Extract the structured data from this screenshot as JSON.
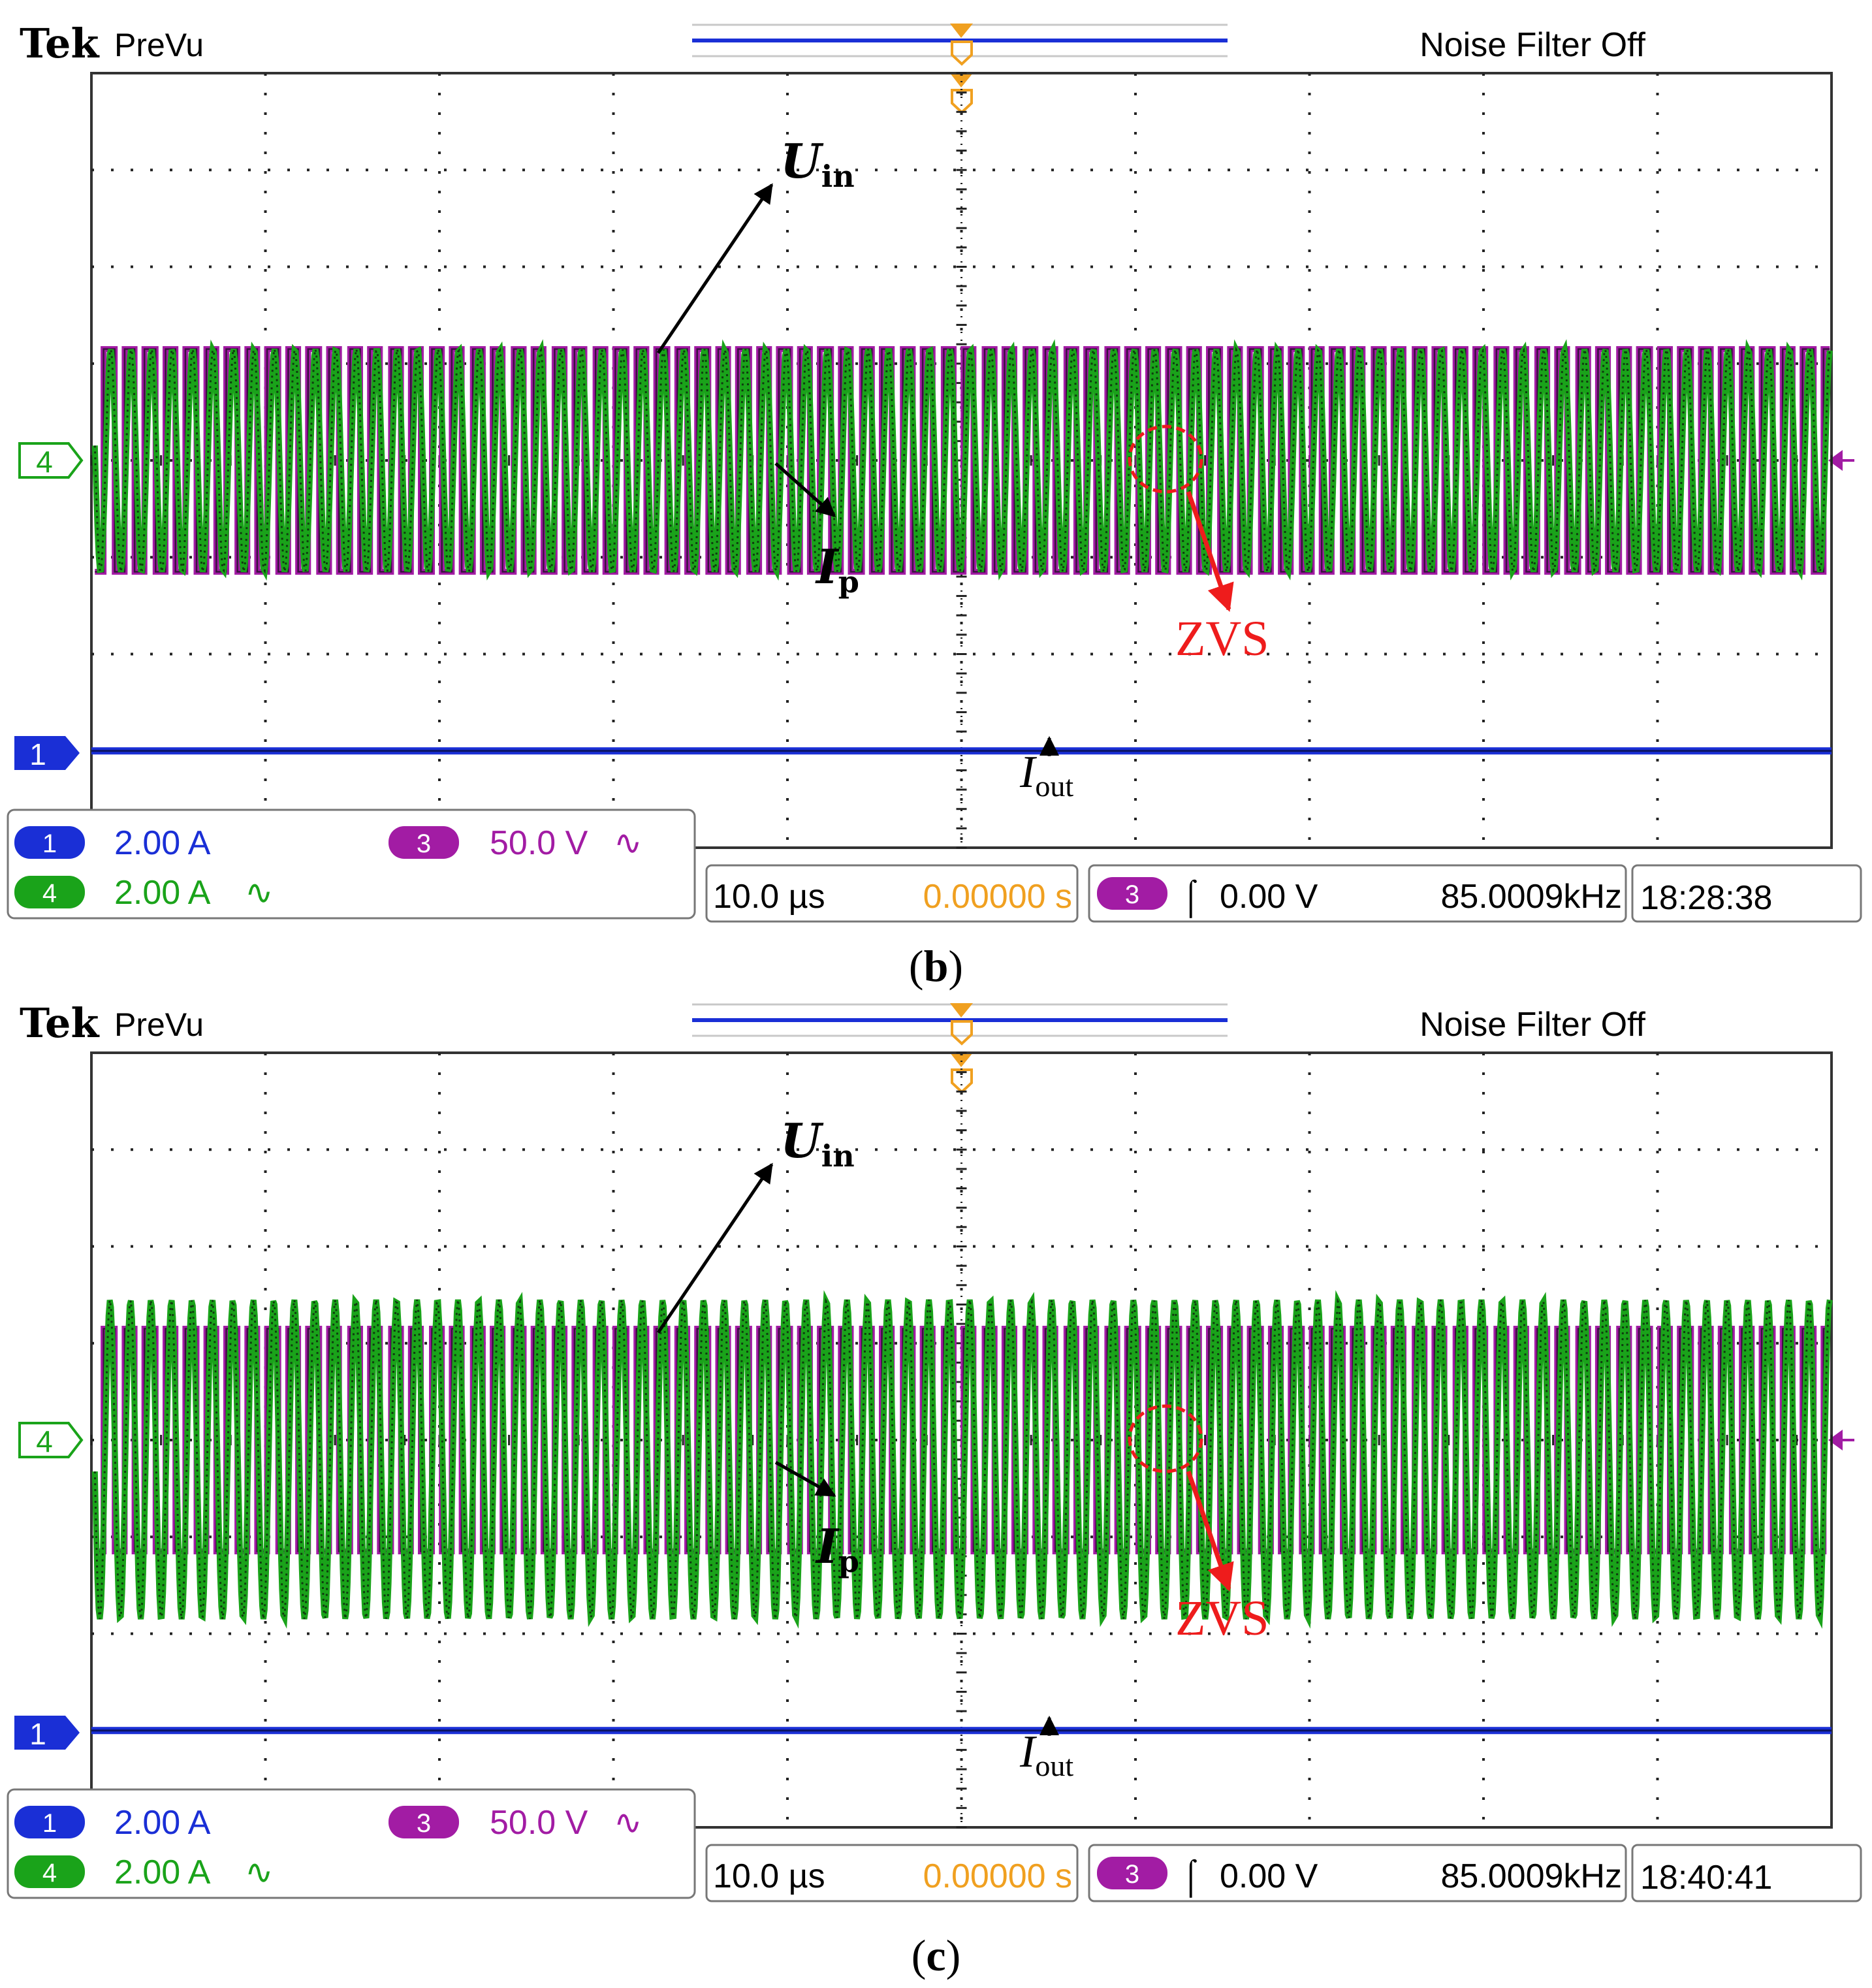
{
  "colors": {
    "ch1": "#1a2fd6",
    "ch3": "#a21ca4",
    "ch4": "#1aa31a",
    "annotation_red": "#ee1c1c",
    "trigger_orange": "#f0a020",
    "grid_dots": "#222222"
  },
  "chart_data": [
    {
      "type": "line",
      "instrument": {
        "brand": "Tek",
        "mode": "PreVu",
        "noise_filter": "Noise Filter Off"
      },
      "channels": [
        {
          "id": "1",
          "scale": "2.00 A",
          "coupling": "",
          "color": "ch1"
        },
        {
          "id": "4",
          "scale": "2.00 A",
          "coupling": "∿",
          "color": "ch4"
        },
        {
          "id": "3",
          "scale": "50.0 V",
          "coupling": "∿",
          "color": "ch3"
        }
      ],
      "readouts": {
        "timebase": "10.0 µs",
        "position": "0.00000 s",
        "trigger_channel": "3",
        "trigger_slope": "⌠",
        "trigger_level": "0.00 V",
        "frequency": "85.0009kHz",
        "clock": "18:28:38"
      },
      "markers": {
        "ch4": "4",
        "ch1": "1"
      },
      "labels": {
        "uin": {
          "main": "U",
          "sub": "in"
        },
        "ip": {
          "main": "I",
          "sub": "p"
        },
        "iout": {
          "main": "I",
          "sub": "out"
        },
        "zvs": "ZVS"
      },
      "xlim_div": [
        0,
        10
      ],
      "ylim_div": [
        -4,
        4
      ],
      "grid": true,
      "frequency_khz": 85.0009,
      "series": [
        {
          "name": "U_in",
          "channel": "3",
          "shape": "square",
          "amplitude_div": 1.15,
          "offset_div": 0,
          "phase_deg": 0
        },
        {
          "name": "I_p",
          "channel": "4",
          "shape": "sine",
          "amplitude_div": 1.15,
          "offset_div": 0,
          "phase_deg": 40
        },
        {
          "name": "I_out",
          "channel": "1",
          "shape": "dc",
          "level_div": -3.0
        }
      ],
      "caption": {
        "open": "(",
        "letter": "b",
        "close": ")"
      }
    },
    {
      "type": "line",
      "instrument": {
        "brand": "Tek",
        "mode": "PreVu",
        "noise_filter": "Noise Filter Off"
      },
      "channels": [
        {
          "id": "1",
          "scale": "2.00 A",
          "coupling": "",
          "color": "ch1"
        },
        {
          "id": "4",
          "scale": "2.00 A",
          "coupling": "∿",
          "color": "ch4"
        },
        {
          "id": "3",
          "scale": "50.0 V",
          "coupling": "∿",
          "color": "ch3"
        }
      ],
      "readouts": {
        "timebase": "10.0 µs",
        "position": "0.00000 s",
        "trigger_channel": "3",
        "trigger_slope": "⌠",
        "trigger_level": "0.00 V",
        "frequency": "85.0009kHz",
        "clock": "18:40:41"
      },
      "markers": {
        "ch4": "4",
        "ch1": "1"
      },
      "labels": {
        "uin": {
          "main": "U",
          "sub": "in"
        },
        "ip": {
          "main": "I",
          "sub": "p"
        },
        "iout": {
          "main": "I",
          "sub": "out"
        },
        "zvs": "ZVS"
      },
      "xlim_div": [
        0,
        10
      ],
      "ylim_div": [
        -4,
        4
      ],
      "grid": true,
      "frequency_khz": 85.0009,
      "series": [
        {
          "name": "U_in",
          "channel": "3",
          "shape": "square",
          "amplitude_div": 1.15,
          "offset_div": 0,
          "phase_deg": 0
        },
        {
          "name": "I_p",
          "channel": "4",
          "shape": "sine",
          "amplitude_div": 1.65,
          "offset_div": -0.2,
          "phase_deg": 28
        },
        {
          "name": "I_out",
          "channel": "1",
          "shape": "dc",
          "level_div": -3.0
        }
      ],
      "caption": {
        "open": "(",
        "letter": "c",
        "close": ")"
      }
    }
  ]
}
